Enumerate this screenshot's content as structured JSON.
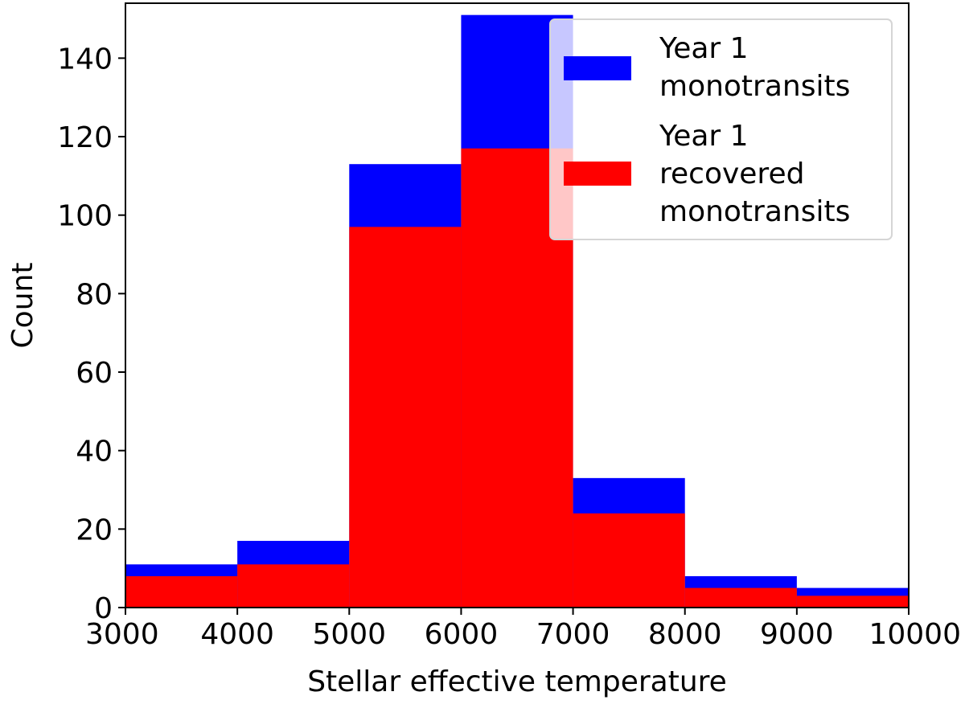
{
  "chart_data": {
    "type": "histogram",
    "xlabel": "Stellar effective temperature",
    "ylabel": "Count",
    "xlim": [
      3000,
      10000
    ],
    "ylim": [
      0,
      154
    ],
    "x_ticks": [
      3000,
      4000,
      5000,
      6000,
      7000,
      8000,
      9000,
      10000
    ],
    "y_ticks": [
      0,
      20,
      40,
      60,
      80,
      100,
      120,
      140
    ],
    "bin_edges": [
      3000,
      4000,
      5000,
      6000,
      7000,
      8000,
      9000,
      10000
    ],
    "grid": false,
    "legend_position": "top-right",
    "series": [
      {
        "name": "Year 1 monotransits",
        "legend_lines": [
          "Year 1",
          "monotransits"
        ],
        "color": "#0000ff",
        "values": [
          11,
          17,
          113,
          151,
          33,
          8,
          5
        ]
      },
      {
        "name": "Year 1 recovered monotransits",
        "legend_lines": [
          "Year 1",
          "recovered",
          "monotransits"
        ],
        "color": "#ff0000",
        "values": [
          8,
          11,
          97,
          117,
          24,
          5,
          3
        ]
      }
    ]
  }
}
